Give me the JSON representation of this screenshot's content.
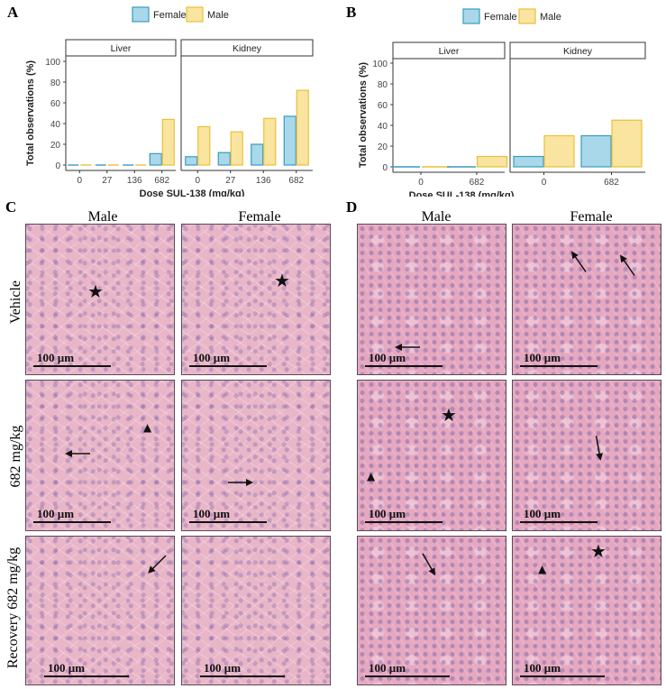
{
  "panel_labels": {
    "a": "A",
    "b": "B",
    "c": "C",
    "d": "D"
  },
  "chart_data": [
    {
      "type": "bar",
      "panel": "A",
      "facets": [
        "Liver",
        "Kidney"
      ],
      "categories": [
        "0",
        "27",
        "136",
        "682"
      ],
      "series": [
        {
          "name": "Female",
          "color": "#a8d8ea",
          "edge": "#3a9bc1",
          "values": {
            "Liver": [
              0,
              0,
              0,
              11
            ],
            "Kidney": [
              8,
              12,
              20,
              47
            ]
          }
        },
        {
          "name": "Male",
          "color": "#f9e4a0",
          "edge": "#e8c13a",
          "values": {
            "Liver": [
              0,
              0,
              0,
              44
            ],
            "Kidney": [
              37,
              32,
              45,
              72
            ]
          }
        }
      ],
      "xlabel": "Dose SUL-138 (mg/kg)",
      "ylabel": "Total observations (%)",
      "yticks": [
        "0",
        "20",
        "40",
        "60",
        "80",
        "100"
      ],
      "ylim": [
        0,
        100
      ],
      "legend": "top"
    },
    {
      "type": "bar",
      "panel": "B",
      "facets": [
        "Liver",
        "Kidney"
      ],
      "categories": [
        "0",
        "682"
      ],
      "series": [
        {
          "name": "Female",
          "color": "#a8d8ea",
          "edge": "#3a9bc1",
          "values": {
            "Liver": [
              0,
              0
            ],
            "Kidney": [
              10,
              30
            ]
          }
        },
        {
          "name": "Male",
          "color": "#f9e4a0",
          "edge": "#e8c13a",
          "values": {
            "Liver": [
              0,
              10
            ],
            "Kidney": [
              30,
              45
            ]
          }
        }
      ],
      "xlabel": "Dose SUL-138 (mg/kg)",
      "ylabel": "Total observations (%)",
      "yticks": [
        "0",
        "20",
        "40",
        "60",
        "80",
        "100"
      ],
      "ylim": [
        0,
        100
      ],
      "legend": "top"
    }
  ],
  "histology": {
    "col_male": "Male",
    "col_female": "Female",
    "rows": [
      "Vehicle",
      "682 mg/kg",
      "Recovery  682 mg/kg"
    ],
    "scale": "100 µm",
    "liver_color": "#e9b6c8",
    "kidney_color": "#e6a8c0"
  }
}
